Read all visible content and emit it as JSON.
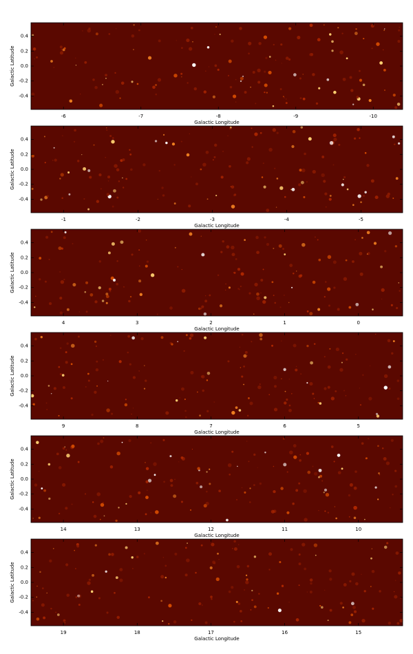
{
  "chart_data": [
    {
      "type": "image",
      "color": "#5a0800",
      "xlabel": "Galactic Longitude",
      "ylabel": "Galactic Latitude",
      "xlim": [
        -5.58,
        -10.38
      ],
      "xticks": [
        -6,
        -7,
        -8,
        -9,
        -10
      ],
      "ylim": [
        -0.58,
        0.58
      ],
      "yticks": [
        0.4,
        0.2,
        {
          "value": 0,
          "label": "0.0"
        },
        -0.2,
        -0.4
      ]
    },
    {
      "type": "image",
      "color": "#5a0800",
      "xlabel": "Galactic Longitude",
      "ylabel": "Galactic Latitude",
      "xlim": [
        -0.56,
        -5.56
      ],
      "xticks": [
        -1,
        -2,
        -3,
        -4,
        -5
      ],
      "ylim": [
        -0.58,
        0.58
      ],
      "yticks": [
        0.4,
        0.2,
        {
          "value": 0,
          "label": "0.0"
        },
        -0.2,
        -0.4
      ]
    },
    {
      "type": "image",
      "color": "#5a0800",
      "xlabel": "Galactic Longitude",
      "ylabel": "Galactic Latitude",
      "xlim": [
        4.44,
        -0.6
      ],
      "xticks": [
        4,
        3,
        2,
        1,
        0
      ],
      "ylim": [
        -0.58,
        0.58
      ],
      "yticks": [
        0.4,
        0.2,
        {
          "value": 0,
          "label": "0.0"
        },
        -0.2,
        -0.4
      ]
    },
    {
      "type": "image",
      "color": "#5a0800",
      "xlabel": "Galactic Longitude",
      "ylabel": "Galactic Latitude",
      "xlim": [
        9.44,
        4.4
      ],
      "xticks": [
        9,
        8,
        7,
        6,
        5
      ],
      "ylim": [
        -0.58,
        0.58
      ],
      "yticks": [
        0.4,
        0.2,
        {
          "value": 0,
          "label": "0.0"
        },
        -0.2,
        -0.4
      ]
    },
    {
      "type": "image",
      "color": "#5a0800",
      "xlabel": "Galactic Longitude",
      "ylabel": "Galactic Latitude",
      "xlim": [
        14.44,
        9.4
      ],
      "xticks": [
        14,
        13,
        12,
        11,
        10
      ],
      "ylim": [
        -0.58,
        0.58
      ],
      "yticks": [
        0.4,
        0.2,
        {
          "value": 0,
          "label": "0.0"
        },
        -0.2,
        -0.4
      ]
    },
    {
      "type": "image",
      "color": "#5a0800",
      "xlabel": "Galactic Longitude",
      "ylabel": "Galactic Latitude",
      "xlim": [
        19.44,
        14.4
      ],
      "xticks": [
        19,
        18,
        17,
        16,
        15
      ],
      "ylim": [
        -0.58,
        0.58
      ],
      "yticks": [
        0.4,
        0.2,
        {
          "value": 0,
          "label": "0.0"
        },
        -0.2,
        -0.4
      ]
    }
  ]
}
